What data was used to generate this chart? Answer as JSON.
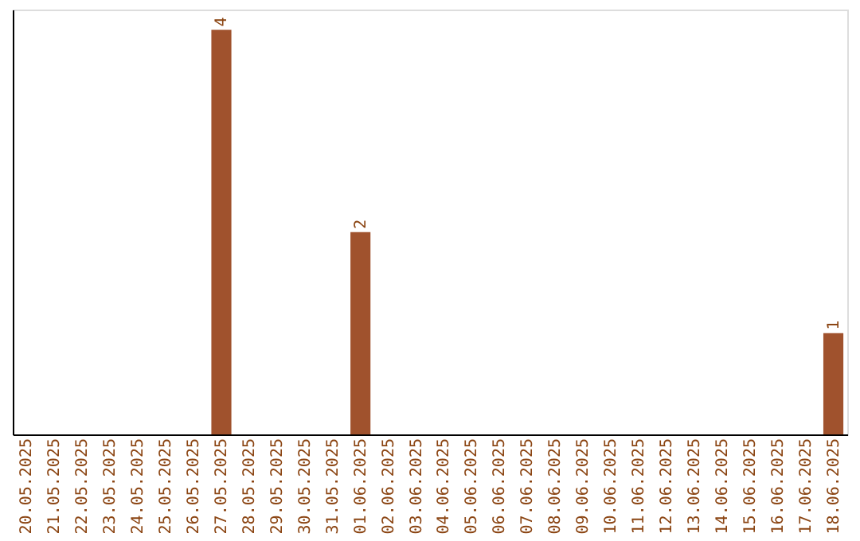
{
  "chart_data": {
    "type": "bar",
    "categories": [
      "20.05.2025",
      "21.05.2025",
      "22.05.2025",
      "23.05.2025",
      "24.05.2025",
      "25.05.2025",
      "26.05.2025",
      "27.05.2025",
      "28.05.2025",
      "29.05.2025",
      "30.05.2025",
      "31.05.2025",
      "01.06.2025",
      "02.06.2025",
      "03.06.2025",
      "04.06.2025",
      "05.06.2025",
      "06.06.2025",
      "07.06.2025",
      "08.06.2025",
      "09.06.2025",
      "10.06.2025",
      "11.06.2025",
      "12.06.2025",
      "13.06.2025",
      "14.06.2025",
      "15.06.2025",
      "16.06.2025",
      "17.06.2025",
      "18.06.2025"
    ],
    "values": [
      0,
      0,
      0,
      0,
      0,
      0,
      0,
      4,
      0,
      0,
      0,
      0,
      2,
      0,
      0,
      0,
      0,
      0,
      0,
      0,
      0,
      0,
      0,
      0,
      0,
      0,
      0,
      0,
      0,
      1
    ],
    "color": "#a0522d",
    "ylim": [
      0,
      4.2
    ],
    "value_labels": [
      null,
      null,
      null,
      null,
      null,
      null,
      null,
      "4",
      null,
      null,
      null,
      null,
      "2",
      null,
      null,
      null,
      null,
      null,
      null,
      null,
      null,
      null,
      null,
      null,
      null,
      null,
      null,
      null,
      null,
      "1"
    ],
    "tick_labels": "x",
    "grid": false
  }
}
